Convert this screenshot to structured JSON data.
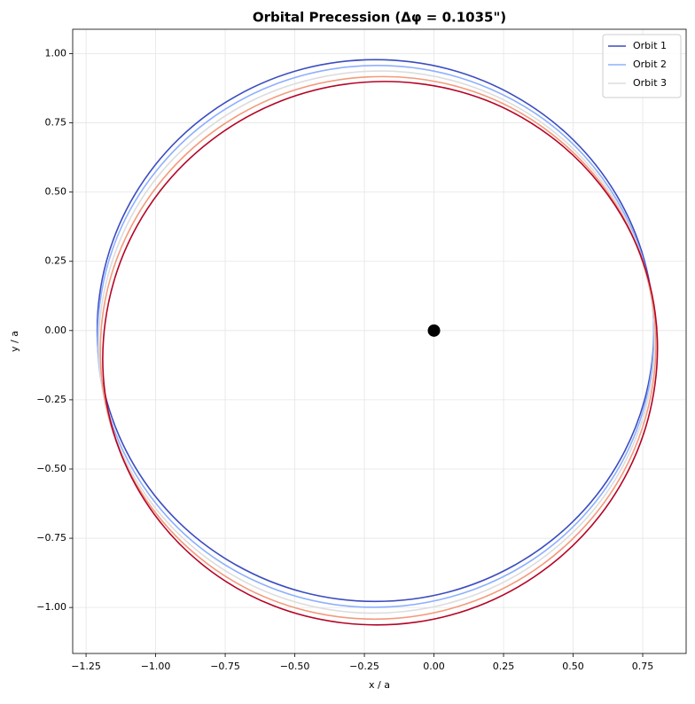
{
  "chart_data": {
    "type": "line",
    "title": "Orbital Precession (Δφ = 0.1035\")",
    "xlabel": "x / a",
    "ylabel": "y / a",
    "xlim": [
      -1.298,
      0.906
    ],
    "ylim": [
      -1.166,
      1.088
    ],
    "xticks": [
      {
        "value": -1.25,
        "label": "−1.25"
      },
      {
        "value": -1.0,
        "label": "−1.00"
      },
      {
        "value": -0.75,
        "label": "−0.75"
      },
      {
        "value": -0.5,
        "label": "−0.50"
      },
      {
        "value": -0.25,
        "label": "−0.25"
      },
      {
        "value": 0,
        "label": "0.00"
      },
      {
        "value": 0.25,
        "label": "0.25"
      },
      {
        "value": 0.5,
        "label": "0.50"
      },
      {
        "value": 0.75,
        "label": "0.75"
      }
    ],
    "yticks": [
      {
        "value": -1.0,
        "label": "−1.00"
      },
      {
        "value": -0.75,
        "label": "−0.75"
      },
      {
        "value": -0.5,
        "label": "−0.50"
      },
      {
        "value": -0.25,
        "label": "−0.25"
      },
      {
        "value": 0,
        "label": "0.00"
      },
      {
        "value": 0.25,
        "label": "0.25"
      },
      {
        "value": 0.5,
        "label": "0.50"
      },
      {
        "value": 0.75,
        "label": "0.75"
      },
      {
        "value": 1.0,
        "label": "1.00"
      }
    ],
    "grid": true,
    "legend": "upper right",
    "closed": true,
    "series": [
      {
        "name": "Orbit 1",
        "color": "#3b4cc0",
        "x": [
          0.79,
          0.756,
          0.656,
          0.497,
          0.29,
          0.049,
          -0.21,
          -0.469,
          -0.71,
          -0.917,
          -1.076,
          -1.176,
          -1.21,
          -1.176,
          -1.076,
          -0.917,
          -0.71,
          -0.469,
          -0.21,
          0.049,
          0.29,
          0.497,
          0.656,
          0.756
        ],
        "y": [
          0,
          0.253,
          0.489,
          0.692,
          0.847,
          0.945,
          0.978,
          0.945,
          0.847,
          0.692,
          0.489,
          0.253,
          0,
          -0.253,
          -0.489,
          -0.692,
          -0.847,
          -0.945,
          -0.978,
          -0.945,
          -0.847,
          -0.692,
          -0.489,
          -0.253
        ]
      },
      {
        "name": "Orbit 2",
        "color": "#8db0fe",
        "x": [
          0.786,
          0.727,
          0.604,
          0.426,
          0.204,
          -0.045,
          -0.307,
          -0.561,
          -0.791,
          -0.981,
          -1.12,
          -1.195,
          -1.204,
          -1.145,
          -1.022,
          -0.843,
          -0.621,
          -0.373,
          -0.111,
          0.143,
          0.374,
          0.564,
          0.702,
          0.777
        ],
        "y": [
          0.079,
          0.327,
          0.552,
          0.739,
          0.872,
          0.945,
          0.952,
          0.893,
          0.772,
          0.597,
          0.38,
          0.135,
          -0.121,
          -0.369,
          -0.594,
          -0.781,
          -0.914,
          -0.987,
          -0.994,
          -0.935,
          -0.814,
          -0.639,
          -0.422,
          -0.177
        ]
      },
      {
        "name": "Orbit 3",
        "color": "#dddddd",
        "x": [
          0.774,
          0.691,
          0.546,
          0.349,
          0.116,
          -0.14,
          -0.4,
          -0.648,
          -0.864,
          -1.037,
          -1.151,
          -1.202,
          -1.186,
          -1.102,
          -0.957,
          -0.761,
          -0.528,
          -0.272,
          -0.012,
          0.236,
          0.452,
          0.625,
          0.74,
          0.791
        ],
        "y": [
          0.157,
          0.398,
          0.609,
          0.777,
          0.888,
          0.936,
          0.916,
          0.833,
          0.689,
          0.496,
          0.265,
          0.014,
          -0.24,
          -0.482,
          -0.693,
          -0.86,
          -0.971,
          -1.019,
          -1.0,
          -0.916,
          -0.772,
          -0.579,
          -0.349,
          -0.098
        ]
      },
      {
        "color": "#f49a7b",
        "x": [
          0.754,
          0.647,
          0.481,
          0.271,
          0.027,
          -0.232,
          -0.49,
          -0.727,
          -0.928,
          -1.08,
          -1.173,
          -1.198,
          -1.156,
          -1.048,
          -0.883,
          -0.672,
          -0.428,
          -0.169,
          0.088,
          0.326,
          0.527,
          0.679,
          0.771,
          0.797
        ],
        "y": [
          0.233,
          0.465,
          0.661,
          0.808,
          0.895,
          0.916,
          0.872,
          0.763,
          0.599,
          0.39,
          0.149,
          -0.106,
          -0.358,
          -0.59,
          -0.785,
          -0.932,
          -1.019,
          -1.041,
          -0.996,
          -0.888,
          -0.723,
          -0.514,
          -0.273,
          -0.019
        ]
      },
      {
        "color": "#b40426",
        "x": [
          0.728,
          0.597,
          0.414,
          0.189,
          -0.063,
          -0.323,
          -0.574,
          -0.8,
          -0.984,
          -1.114,
          -1.181,
          -1.182,
          -1.114,
          -0.984,
          -0.801,
          -0.576,
          -0.324,
          -0.064,
          0.188,
          0.413,
          0.597,
          0.727,
          0.794,
          0.795
        ],
        "y": [
          0.308,
          0.527,
          0.705,
          0.831,
          0.893,
          0.889,
          0.819,
          0.687,
          0.504,
          0.28,
          0.031,
          -0.225,
          -0.471,
          -0.691,
          -0.869,
          -0.994,
          -1.056,
          -1.053,
          -0.983,
          -0.851,
          -0.667,
          -0.443,
          -0.195,
          0.061
        ]
      },
      {
        "color": "#000000",
        "marker": "o",
        "x": [
          0
        ],
        "y": [
          0
        ]
      }
    ]
  }
}
